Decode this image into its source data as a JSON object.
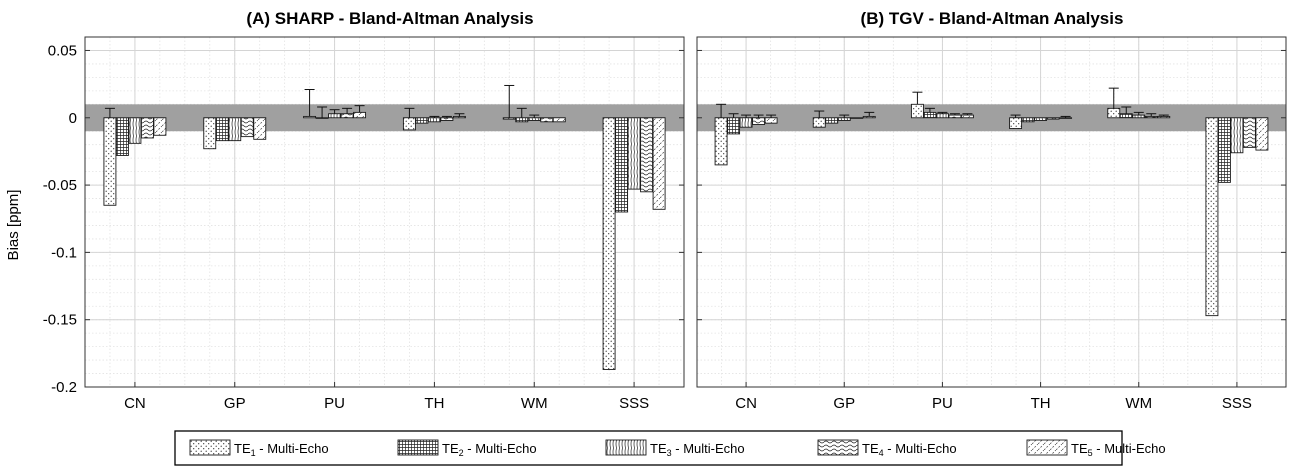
{
  "chart_data": [
    {
      "type": "bar",
      "title": "(A) SHARP - Bland-Altman Analysis",
      "ylabel": "Bias [ppm]",
      "ylim": [
        -0.2,
        0.06
      ],
      "yticks": [
        0.05,
        0,
        -0.05,
        -0.1,
        -0.15,
        -0.2
      ],
      "ytick_labels": [
        "0.05",
        "0",
        "-0.05",
        "-0.1",
        "-0.15",
        "-0.2"
      ],
      "grid": true,
      "minor_grid": true,
      "reference_band": [
        -0.01,
        0.01
      ],
      "categories": [
        "CN",
        "GP",
        "PU",
        "TH",
        "WM",
        "SSS"
      ],
      "series": [
        {
          "values": [
            -0.065,
            -0.023,
            0.001,
            -0.009,
            -0.001,
            -0.187
          ],
          "error_upper": [
            0.007,
            null,
            0.021,
            0.007,
            0.024,
            null
          ]
        },
        {
          "values": [
            -0.028,
            -0.017,
            0.0,
            -0.004,
            -0.003,
            -0.07
          ],
          "error_upper": [
            null,
            null,
            0.008,
            null,
            0.007,
            null
          ]
        },
        {
          "values": [
            -0.019,
            -0.017,
            0.003,
            -0.003,
            -0.002,
            -0.053
          ],
          "error_upper": [
            null,
            null,
            0.006,
            0.001,
            0.002,
            null
          ]
        },
        {
          "values": [
            -0.015,
            -0.014,
            0.003,
            -0.002,
            -0.003,
            -0.055
          ],
          "error_upper": [
            null,
            null,
            0.007,
            0.001,
            null,
            null
          ]
        },
        {
          "values": [
            -0.013,
            -0.016,
            0.004,
            0.001,
            -0.003,
            -0.068
          ],
          "error_upper": [
            null,
            null,
            0.009,
            0.003,
            null,
            null
          ]
        }
      ]
    },
    {
      "type": "bar",
      "title": "(B) TGV - Bland-Altman Analysis",
      "ylim": [
        -0.2,
        0.06
      ],
      "yticks": [
        0.05,
        0,
        -0.05,
        -0.1,
        -0.15,
        -0.2
      ],
      "grid": true,
      "minor_grid": true,
      "reference_band": [
        -0.01,
        0.01
      ],
      "categories": [
        "CN",
        "GP",
        "PU",
        "TH",
        "WM",
        "SSS"
      ],
      "series": [
        {
          "values": [
            -0.035,
            -0.007,
            0.01,
            -0.008,
            0.007,
            -0.147
          ],
          "error_upper": [
            0.01,
            0.005,
            0.019,
            0.002,
            0.022,
            null
          ]
        },
        {
          "values": [
            -0.012,
            -0.004,
            0.004,
            -0.003,
            0.003,
            -0.048
          ],
          "error_upper": [
            0.003,
            null,
            0.007,
            null,
            0.008,
            null
          ]
        },
        {
          "values": [
            -0.007,
            -0.002,
            0.003,
            -0.002,
            0.002,
            -0.026
          ],
          "error_upper": [
            0.002,
            0.002,
            0.004,
            null,
            0.004,
            null
          ]
        },
        {
          "values": [
            -0.005,
            0.0,
            0.002,
            -0.001,
            0.001,
            -0.022
          ],
          "error_upper": [
            0.002,
            null,
            0.003,
            null,
            0.003,
            null
          ]
        },
        {
          "values": [
            -0.004,
            0.001,
            0.002,
            0.0,
            0.001,
            -0.024
          ],
          "error_upper": [
            0.002,
            0.004,
            0.003,
            0.001,
            0.002,
            null
          ]
        }
      ]
    }
  ],
  "legend": {
    "placement": "bottom",
    "entries": [
      {
        "prefix": "TE",
        "sub": "1",
        "suffix": " - Multi-Echo",
        "pattern": "dots"
      },
      {
        "prefix": "TE",
        "sub": "2",
        "suffix": " - Multi-Echo",
        "pattern": "grid"
      },
      {
        "prefix": "TE",
        "sub": "3",
        "suffix": " - Multi-Echo",
        "pattern": "vlines"
      },
      {
        "prefix": "TE",
        "sub": "4",
        "suffix": " - Multi-Echo",
        "pattern": "waves"
      },
      {
        "prefix": "TE",
        "sub": "5",
        "suffix": " - Multi-Echo",
        "pattern": "slashes"
      }
    ]
  },
  "colors": {
    "reference_band": "#a0a0a0",
    "bar_fill": "#ffffff",
    "grid": "#d4d4d4",
    "axes": "#333333"
  }
}
